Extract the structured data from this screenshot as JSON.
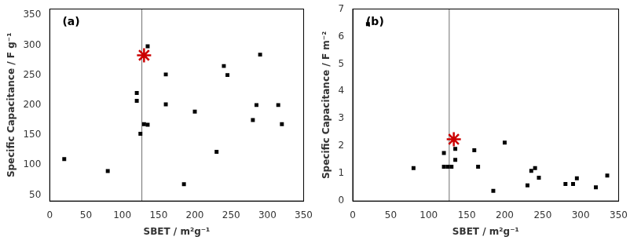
{
  "chart_data": [
    {
      "type": "scatter",
      "annotations": [
        {
          "text": "(a)"
        }
      ],
      "x_label": "SBET / m²g⁻¹",
      "y_label": "Specific Capacitance / F g⁻¹",
      "series": [
        {
          "x": [
            20,
            80,
            120,
            120,
            125,
            130,
            135,
            135,
            160,
            160,
            185,
            200,
            230,
            240,
            245,
            280,
            285,
            290,
            315,
            320
          ],
          "values": [
            110,
            90,
            220,
            207,
            152,
            168,
            167,
            298,
            251,
            201,
            68,
            189,
            122,
            265,
            250,
            175,
            200,
            284,
            200,
            168
          ],
          "color": "#000000",
          "marker": "square"
        },
        {
          "x": [
            130
          ],
          "values": [
            283
          ],
          "color": "#cc0000",
          "marker": "star"
        }
      ],
      "vlines": [
        {
          "x": 127,
          "color": "#707070"
        }
      ],
      "xlim": [
        0,
        350
      ],
      "ylim": [
        40,
        360
      ],
      "xticks": [
        0,
        50,
        100,
        150,
        200,
        250,
        300,
        350
      ],
      "yticks": [
        50,
        100,
        150,
        200,
        250,
        300,
        350
      ],
      "grid": false
    },
    {
      "type": "scatter",
      "annotations": [
        {
          "text": "(b)"
        }
      ],
      "x_label": "SBET / m²g⁻¹",
      "y_label": "Specific Capacitance / F m⁻²",
      "series": [
        {
          "x": [
            20,
            80,
            120,
            120,
            125,
            130,
            135,
            135,
            160,
            165,
            185,
            200,
            230,
            235,
            240,
            245,
            280,
            290,
            295,
            320,
            335
          ],
          "values": [
            6.45,
            1.2,
            1.75,
            1.25,
            1.25,
            1.25,
            1.5,
            1.9,
            1.85,
            1.25,
            0.37,
            2.13,
            0.57,
            1.1,
            1.2,
            0.85,
            0.62,
            0.62,
            0.83,
            0.5,
            0.93
          ],
          "color": "#000000",
          "marker": "square"
        },
        {
          "x": [
            133
          ],
          "values": [
            2.25
          ],
          "color": "#cc0000",
          "marker": "star"
        }
      ],
      "vlines": [
        {
          "x": 127,
          "color": "#707070"
        }
      ],
      "xlim": [
        0,
        350
      ],
      "ylim": [
        0,
        7
      ],
      "xticks": [
        0,
        50,
        100,
        150,
        200,
        250,
        300,
        350
      ],
      "yticks": [
        0,
        1,
        2,
        3,
        4,
        5,
        6,
        7
      ],
      "grid": false
    }
  ]
}
